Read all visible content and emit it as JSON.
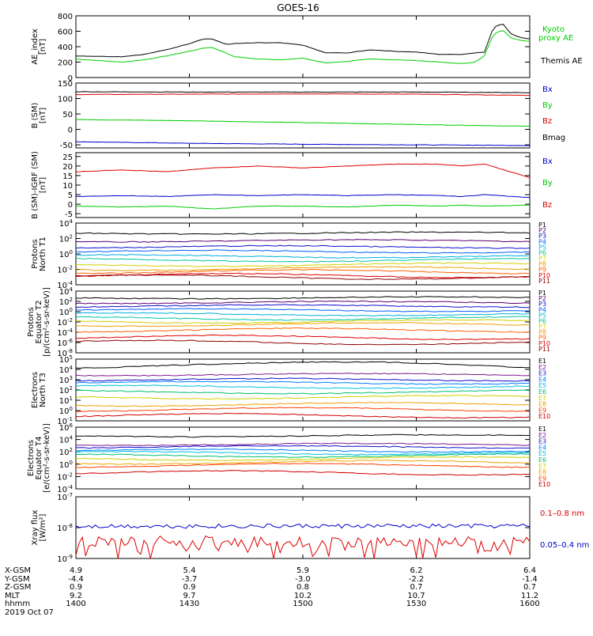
{
  "title": "GOES-16",
  "colors": {
    "black": "#000000",
    "blue": "#0000cc",
    "green": "#00cc00",
    "red": "#dd0000",
    "p_colors": [
      "#000000",
      "#5a0070",
      "#1010cc",
      "#0060ff",
      "#00b0e0",
      "#00c8a0",
      "#d0d000",
      "#f0a000",
      "#ff6000",
      "#e00000",
      "#900000"
    ],
    "e_colors": [
      "#000000",
      "#7a1a8a",
      "#1010cc",
      "#0080ff",
      "#00c0e0",
      "#00c070",
      "#d0d000",
      "#f0a000",
      "#ff4000",
      "#d00000"
    ]
  },
  "ephemeris": {
    "labels": [
      "X-GSM",
      "Y-GSM",
      "Z-GSM",
      "MLT",
      "hhmm",
      "2019 Oct 07"
    ],
    "columns": [
      [
        "4.9",
        "-4.4",
        "0.9",
        "9.2",
        "1400"
      ],
      [
        "5.4",
        "-3.7",
        "0.9",
        "9.7",
        "1430"
      ],
      [
        "5.9",
        "-3.0",
        "0.8",
        "10.2",
        "1500"
      ],
      [
        "6.2",
        "-2.2",
        "0.7",
        "10.7",
        "1530"
      ],
      [
        "6.4",
        "-1.4",
        "0.7",
        "11.2",
        "1600"
      ]
    ]
  },
  "chart_data": [
    {
      "type": "line",
      "ylabel": [
        "AE_index",
        "[nT]"
      ],
      "ylim": [
        0,
        800
      ],
      "yticks": [
        "0",
        "200",
        "400",
        "600",
        "800"
      ],
      "x": [
        0,
        0.1,
        0.15,
        0.2,
        0.25,
        0.28,
        0.3,
        0.33,
        0.35,
        0.4,
        0.45,
        0.5,
        0.55,
        0.6,
        0.65,
        0.7,
        0.75,
        0.8,
        0.85,
        0.88,
        0.9,
        0.92,
        0.94,
        0.96,
        0.98,
        1.0
      ],
      "series": [
        {
          "name": "Kyoto proxy AE",
          "color_key": "green",
          "values": [
            240,
            200,
            230,
            280,
            340,
            380,
            390,
            320,
            270,
            240,
            230,
            250,
            190,
            210,
            240,
            230,
            220,
            200,
            180,
            200,
            280,
            560,
            620,
            510,
            480,
            470
          ]
        },
        {
          "name": "Themis AE",
          "color_key": "black",
          "values": [
            280,
            270,
            300,
            360,
            440,
            500,
            500,
            430,
            440,
            450,
            450,
            420,
            320,
            320,
            360,
            340,
            330,
            300,
            300,
            320,
            330,
            650,
            700,
            560,
            520,
            500
          ]
        }
      ]
    },
    {
      "type": "line",
      "ylabel": [
        "B (SM)",
        "[nT]"
      ],
      "ylim": [
        -60,
        150
      ],
      "yticks": [
        "-50",
        "0",
        "50",
        "100",
        "150"
      ],
      "x": [
        0,
        0.25,
        0.5,
        0.75,
        1.0
      ],
      "series": [
        {
          "name": "Bx",
          "color_key": "blue",
          "values": [
            -40,
            -45,
            -48,
            -50,
            -52
          ]
        },
        {
          "name": "By",
          "color_key": "green",
          "values": [
            32,
            28,
            22,
            16,
            10
          ]
        },
        {
          "name": "Bz",
          "color_key": "red",
          "values": [
            113,
            114,
            115,
            114,
            110
          ]
        },
        {
          "name": "Bmag",
          "color_key": "black",
          "values": [
            122,
            121,
            121,
            121,
            119
          ]
        }
      ]
    },
    {
      "type": "line",
      "ylabel": [
        "B (SM)-IGRF (SM)",
        "[nT]"
      ],
      "ylim": [
        -7,
        27
      ],
      "yticks": [
        "-5",
        "0",
        "5",
        "10",
        "15",
        "20",
        "25"
      ],
      "x": [
        0,
        0.1,
        0.2,
        0.3,
        0.4,
        0.5,
        0.6,
        0.7,
        0.8,
        0.85,
        0.9,
        1.0
      ],
      "series": [
        {
          "name": "Bx",
          "color_key": "blue",
          "values": [
            4,
            4.5,
            4,
            5,
            4.5,
            5,
            4.5,
            5,
            4.5,
            4,
            5,
            3.5
          ]
        },
        {
          "name": "By",
          "color_key": "green",
          "values": [
            -1,
            -1.5,
            -1,
            -2.5,
            -1,
            -1,
            -1.5,
            -0.5,
            -1,
            -0.5,
            -1,
            -0.5
          ]
        },
        {
          "name": "Bz",
          "color_key": "red",
          "values": [
            17,
            18,
            17,
            19,
            20,
            19,
            20,
            21,
            21,
            20,
            21,
            14
          ]
        }
      ]
    },
    {
      "type": "line",
      "yscale": "log",
      "ylabel": [
        "Protons",
        "North T1"
      ],
      "ylim": [
        -4,
        4
      ],
      "yticks": [
        "10^-4",
        "10^-2",
        "10^0",
        "10^2",
        "10^4"
      ],
      "legend": [
        "P1",
        "P2",
        "P3",
        "P4",
        "P5",
        "P6",
        "P7",
        "P8",
        "P9",
        "P10",
        "P11"
      ],
      "levels": [
        2.7,
        1.7,
        0.9,
        0.3,
        -0.3,
        -0.8,
        -1.4,
        -1.9,
        -2.3,
        -2.8,
        -3.0
      ]
    },
    {
      "type": "line",
      "yscale": "log",
      "ylabel": [
        "Protons",
        "Equator T2",
        "[p/(cm²-s-sr-keV)]"
      ],
      "ylim": [
        -8,
        4
      ],
      "yticks": [
        "10^-8",
        "10^-6",
        "10^-4",
        "10^-2",
        "10^0",
        "10^2",
        "10^4"
      ],
      "legend": [
        "P1",
        "P2",
        "P3",
        "P4",
        "P5",
        "P6",
        "P7",
        "P8",
        "P9",
        "P10",
        "P11"
      ],
      "levels": [
        2.7,
        1.8,
        1.1,
        0.3,
        -0.5,
        -1.3,
        -1.9,
        -2.5,
        -3.6,
        -5.0,
        -6.0
      ]
    },
    {
      "type": "line",
      "yscale": "log",
      "ylabel": [
        "Electrons",
        "North T3"
      ],
      "ylim": [
        -1,
        5
      ],
      "yticks": [
        "10^-1",
        "10^0",
        "10^1",
        "10^2",
        "10^3",
        "10^4",
        "10^5"
      ],
      "legend": [
        "E1",
        "E2",
        "E3",
        "E4",
        "E5",
        "E6",
        "E7",
        "E8",
        "E9",
        "E10"
      ],
      "levels": [
        4.1,
        3.5,
        3.0,
        2.7,
        2.3,
        1.8,
        1.3,
        0.6,
        0.1,
        -0.5
      ]
    },
    {
      "type": "line",
      "yscale": "log",
      "ylabel": [
        "Electrons",
        "Equator T4",
        "[e/(cm²-s-sr-keV)]"
      ],
      "ylim": [
        -4,
        6
      ],
      "yticks": [
        "10^-4",
        "10^-2",
        "10^0",
        "10^2",
        "10^4",
        "10^6"
      ],
      "legend": [
        "E1",
        "E2",
        "E3",
        "E4",
        "E5",
        "E6",
        "E7",
        "E8",
        "E9",
        "E10"
      ],
      "levels": [
        4.6,
        3.2,
        2.8,
        2.2,
        1.8,
        1.4,
        0.9,
        0.3,
        -0.2,
        -1.4
      ]
    },
    {
      "type": "line",
      "yscale": "log",
      "ylabel": [
        "Xray flux",
        "[W/m²]"
      ],
      "ylim": [
        -9,
        -7
      ],
      "yticks": [
        "10^-9",
        "10^-8",
        "10^-7"
      ],
      "series": [
        {
          "name": "0.1–0.8 nm",
          "color_key": "red",
          "mean": -8.45,
          "jitter": 0.18
        },
        {
          "name": "0.05–0.4 nm",
          "color_key": "blue",
          "mean": -7.95,
          "jitter": 0.07
        }
      ]
    }
  ]
}
